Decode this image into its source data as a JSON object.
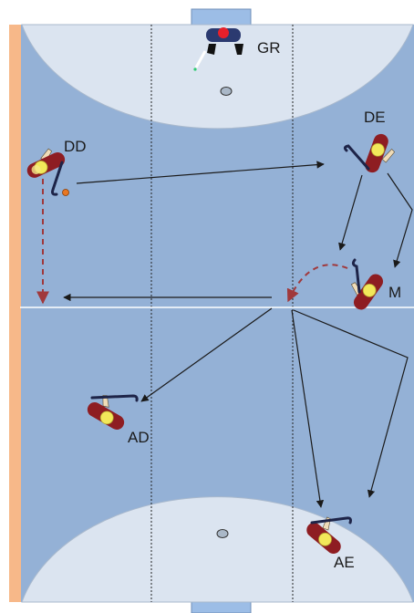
{
  "colors": {
    "court": "#94b1d6",
    "area": "#dbe4f0",
    "sideband": "#f7b889",
    "goal": "#9cbde6",
    "player_body": "#8e1d22",
    "player_head": "#f2e85a",
    "arrow": "#1a1a1a",
    "dashed_arrow": "#a0393c",
    "ball": "#e87722"
  },
  "players": [
    {
      "id": "gr",
      "label": "GR"
    },
    {
      "id": "dd",
      "label": "DD"
    },
    {
      "id": "de",
      "label": "DE"
    },
    {
      "id": "m",
      "label": "M"
    },
    {
      "id": "ad",
      "label": "AD"
    },
    {
      "id": "ae",
      "label": "AE"
    }
  ]
}
